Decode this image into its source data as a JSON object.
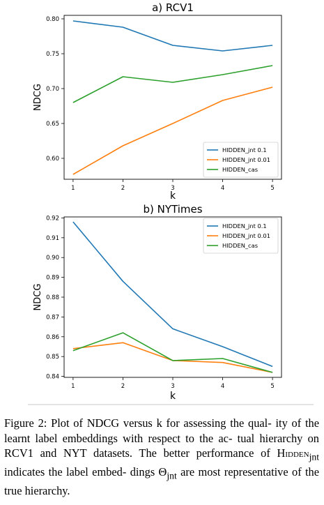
{
  "chart_data": [
    {
      "type": "line",
      "title": "a) RCV1",
      "xlabel": "k",
      "ylabel": "NDCG",
      "x": [
        1,
        2,
        3,
        4,
        5
      ],
      "xticks": [
        "1",
        "2",
        "3",
        "4",
        "5"
      ],
      "ylim": [
        0.57,
        0.805
      ],
      "yticks": [
        0.6,
        0.65,
        0.7,
        0.75,
        0.8
      ],
      "ytick_labels": [
        "0.60",
        "0.65",
        "0.70",
        "0.75",
        "0.80"
      ],
      "legend_position": "lower-right",
      "series": [
        {
          "name": "HIDDEN_jnt 0.1",
          "color": "#1f77b4",
          "values": [
            0.797,
            0.788,
            0.762,
            0.754,
            0.762
          ]
        },
        {
          "name": "HIDDEN_jnt 0.01",
          "color": "#ff7f0e",
          "values": [
            0.577,
            0.618,
            0.65,
            0.683,
            0.702
          ]
        },
        {
          "name": "HIDDEN_cas",
          "color": "#2ca02c",
          "values": [
            0.68,
            0.717,
            0.709,
            0.72,
            0.733
          ]
        }
      ]
    },
    {
      "type": "line",
      "title": "b) NYTimes",
      "xlabel": "k",
      "ylabel": "NDCG",
      "x": [
        1,
        2,
        3,
        4,
        5
      ],
      "xticks": [
        "1",
        "2",
        "3",
        "4",
        "5"
      ],
      "ylim": [
        0.8395,
        0.9205
      ],
      "yticks": [
        0.84,
        0.85,
        0.86,
        0.87,
        0.88,
        0.89,
        0.9,
        0.91,
        0.92
      ],
      "ytick_labels": [
        "0.84",
        "0.85",
        "0.86",
        "0.87",
        "0.88",
        "0.89",
        "0.90",
        "0.91",
        "0.92"
      ],
      "legend_position": "top-right",
      "series": [
        {
          "name": "HIDDEN_jnt 0.1",
          "color": "#1f77b4",
          "values": [
            0.918,
            0.888,
            0.864,
            0.855,
            0.845
          ]
        },
        {
          "name": "HIDDEN_jnt 0.01",
          "color": "#ff7f0e",
          "values": [
            0.854,
            0.857,
            0.848,
            0.847,
            0.842
          ]
        },
        {
          "name": "HIDDEN_cas",
          "color": "#2ca02c",
          "values": [
            0.853,
            0.862,
            0.848,
            0.849,
            0.842
          ]
        }
      ]
    }
  ],
  "caption": {
    "line1": "Figure 2: Plot of NDCG versus k for assessing the qual-",
    "line2": "ity of the learnt label embeddings with respect to the ac-",
    "line3": "tual hierarchy on RCV1 and NYT datasets. The better",
    "line4_pre": "performance of ",
    "line4_sc": "Hidden",
    "line4_sub": "jnt",
    "line4_post": " indicates the label embed-",
    "line5_pre": "dings Θ",
    "line5_sub": "jnt",
    "line5_post": " are most representative of the true hierarchy."
  }
}
